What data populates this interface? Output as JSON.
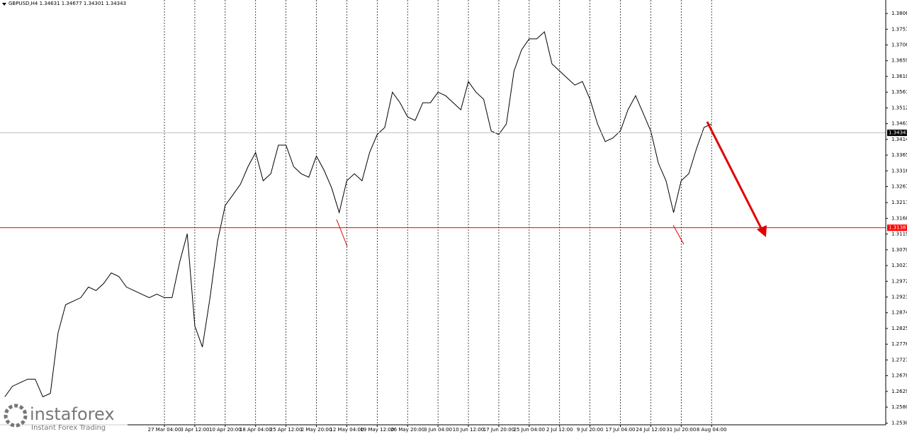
{
  "chart_data": {
    "type": "line",
    "title": "GBPUSD,H4  1.34631 1.34677 1.34301 1.34343",
    "color": "#000000",
    "categories": [
      null,
      null,
      null,
      null,
      null,
      null,
      null,
      null,
      null,
      null,
      null,
      null,
      null,
      null,
      null,
      null,
      null,
      null,
      null,
      null,
      null,
      "27 Mar 04:00",
      null,
      null,
      null,
      "3 Apr 12:00",
      null,
      null,
      null,
      "10 Apr 20:00",
      null,
      null,
      null,
      "18 Apr 04:00",
      null,
      null,
      null,
      "25 Apr 12:00",
      null,
      null,
      null,
      "2 May 20:00",
      null,
      null,
      null,
      "12 May 04:00",
      null,
      null,
      null,
      "19 May 12:00",
      null,
      null,
      null,
      "26 May 20:00",
      null,
      null,
      null,
      "3 Jun 04:00",
      null,
      null,
      null,
      "10 Jun 12:00",
      null,
      null,
      null,
      "17 Jun 20:00",
      null,
      null,
      null,
      "25 Jun 04:00",
      null,
      null,
      null,
      "2 Jul 12:00",
      null,
      null,
      null,
      "9 Jul 20:00",
      null,
      null,
      null,
      "17 Jul 04:00",
      null,
      null,
      null,
      "24 Jul 12:00",
      null,
      null,
      null,
      "31 Jul 20:00",
      null,
      null,
      null,
      "8 Aug 04:00"
    ],
    "values": [
      1.2612,
      1.2645,
      1.2656,
      1.2667,
      1.2667,
      1.2612,
      1.2623,
      1.2811,
      1.2899,
      1.291,
      1.2921,
      1.2954,
      1.2943,
      1.2965,
      1.2998,
      1.2987,
      1.2954,
      1.2943,
      1.2932,
      1.2921,
      1.2932,
      1.2921,
      1.2921,
      1.3031,
      1.312,
      1.2833,
      1.2767,
      1.2921,
      1.3098,
      1.3208,
      1.3241,
      1.3274,
      1.3329,
      1.3373,
      1.3285,
      1.3307,
      1.3396,
      1.3396,
      1.3329,
      1.3307,
      1.3296,
      1.3362,
      1.3318,
      1.3263,
      1.3186,
      1.3285,
      1.3307,
      1.3285,
      1.3373,
      1.3429,
      1.3451,
      1.3561,
      1.3528,
      1.3484,
      1.3473,
      1.3528,
      1.3528,
      1.3561,
      1.355,
      1.3528,
      1.3506,
      1.3594,
      1.3561,
      1.3539,
      1.344,
      1.3429,
      1.3462,
      1.3627,
      1.3693,
      1.3727,
      1.3727,
      1.3749,
      1.3649,
      1.3627,
      1.3605,
      1.3583,
      1.3594,
      1.3539,
      1.3462,
      1.3407,
      1.3418,
      1.344,
      1.3506,
      1.355,
      1.3495,
      1.344,
      1.334,
      1.3285,
      1.3186,
      1.3285,
      1.3307,
      1.3384,
      1.3451,
      1.3462
    ],
    "ylim": [
      1.2525,
      1.3848
    ],
    "yticks": [
      {
        "value": 1.3806,
        "label": "1.38060"
      },
      {
        "value": 1.3757,
        "label": "1.37570"
      },
      {
        "value": 1.3708,
        "label": "1.37080"
      },
      {
        "value": 1.3659,
        "label": "1.36590"
      },
      {
        "value": 1.361,
        "label": "1.36100"
      },
      {
        "value": 1.3561,
        "label": "1.35610"
      },
      {
        "value": 1.3512,
        "label": "1.35120"
      },
      {
        "value": 1.3463,
        "label": "1.34630"
      },
      {
        "value": 1.3414,
        "label": "1.34140"
      },
      {
        "value": 1.3365,
        "label": "1.33650"
      },
      {
        "value": 1.3316,
        "label": "1.33160"
      },
      {
        "value": 1.3267,
        "label": "1.32670"
      },
      {
        "value": 1.3217,
        "label": "1.32170"
      },
      {
        "value": 1.3168,
        "label": "1.31680"
      },
      {
        "value": 1.3119,
        "label": "1.31190"
      },
      {
        "value": 1.307,
        "label": "1.30700"
      },
      {
        "value": 1.3021,
        "label": "1.30210"
      },
      {
        "value": 1.2972,
        "label": "1.29720"
      },
      {
        "value": 1.2923,
        "label": "1.29230"
      },
      {
        "value": 1.2874,
        "label": "1.28740"
      },
      {
        "value": 1.2825,
        "label": "1.28250"
      },
      {
        "value": 1.2776,
        "label": "1.27760"
      },
      {
        "value": 1.2727,
        "label": "1.27270"
      },
      {
        "value": 1.2678,
        "label": "1.26780"
      },
      {
        "value": 1.2629,
        "label": "1.26290"
      },
      {
        "value": 1.258,
        "label": "1.25800"
      },
      {
        "value": 1.253,
        "label": "1.25300"
      }
    ],
    "grid": true,
    "last_price": 1.34343,
    "level": {
      "value": 1.31387,
      "color": "#ff0000"
    }
  },
  "watermark": {
    "brand": "instaforex",
    "tagline": "Instant Forex Trading"
  }
}
